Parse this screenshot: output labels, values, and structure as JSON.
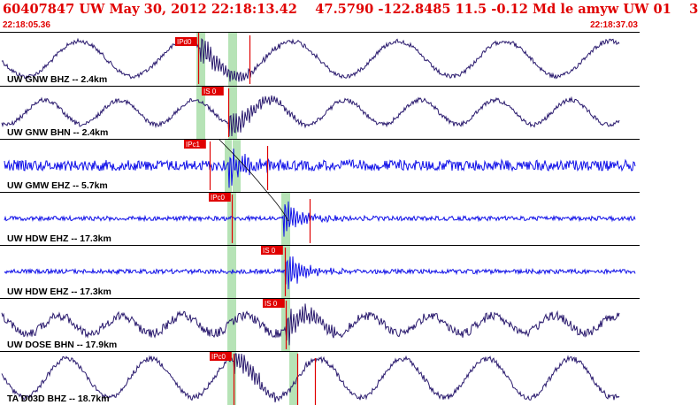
{
  "header": {
    "title": "60407847 UW May 30, 2012 22:18:13.42    47.5790 -122.8485 11.5 -0.12 Md le amyw UW 01    3",
    "start_time": "22:18:05.36",
    "end_time": "22:18:37.03"
  },
  "colors": {
    "title": "#e00000",
    "trace_broadband": "#2a1a6e",
    "trace_short_period": "#1010e8",
    "pick": "#e00000",
    "window": "#b6e3b6"
  },
  "traces": [
    {
      "label": "UW GNW BHZ -- 2.4km",
      "type": "broadband",
      "picks": [
        "IPd0"
      ]
    },
    {
      "label": "UW GNW BHN -- 2.4km",
      "type": "broadband",
      "picks": [
        "IS 0"
      ]
    },
    {
      "label": "UW GMW EHZ -- 5.7km",
      "type": "short-period",
      "picks": [
        "IPc1"
      ]
    },
    {
      "label": "UW HDW EHZ -- 17.3km",
      "type": "short-period",
      "picks": [
        "IPc0"
      ]
    },
    {
      "label": "UW HDW EHZ -- 17.3km",
      "type": "short-period",
      "picks": [
        "IS 0"
      ]
    },
    {
      "label": "UW DOSE BHN -- 17.9km",
      "type": "broadband",
      "picks": [
        "IS 0"
      ]
    },
    {
      "label": "TA D03D BHZ -- 18.7km",
      "type": "broadband",
      "picks": [
        "IPc0"
      ]
    }
  ]
}
